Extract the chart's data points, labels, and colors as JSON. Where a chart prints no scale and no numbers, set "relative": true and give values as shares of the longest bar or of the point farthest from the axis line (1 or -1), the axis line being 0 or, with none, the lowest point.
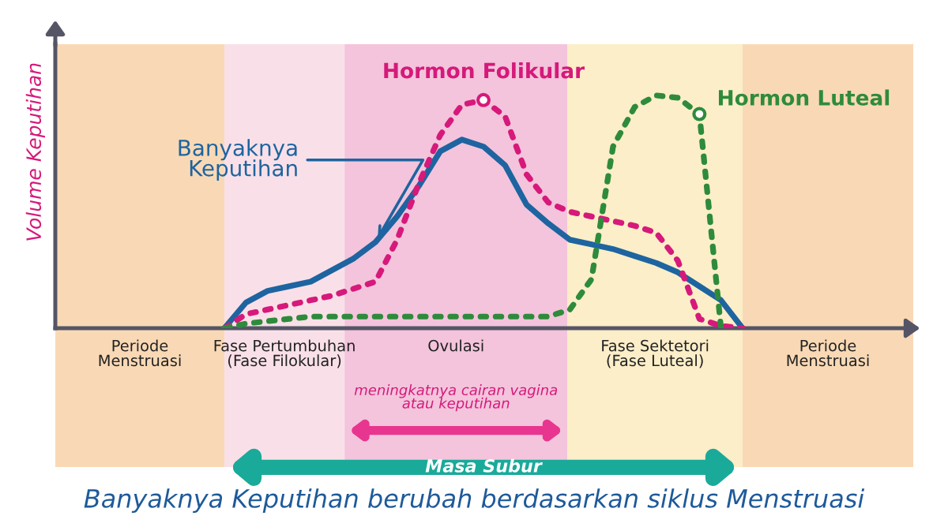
{
  "chart_data": {
    "type": "line",
    "relative": true,
    "title": "Banyaknya Keputihan berubah berdasarkan siklus Menstruasi",
    "categories": [
      null,
      null,
      null,
      null,
      null,
      null,
      null,
      null,
      null,
      null,
      null,
      null,
      null,
      null,
      null,
      null,
      null,
      null,
      null,
      null,
      null,
      null,
      null,
      null,
      null
    ],
    "series": [
      {
        "color": "#1e64a0",
        "line_style": "solid",
        "values": [
          0,
          0.11,
          0.16,
          0.18,
          0.2,
          0.25,
          0.3,
          0.37,
          0.48,
          0.61,
          0.76,
          0.81,
          0.78,
          0.7,
          0.53,
          0.45,
          0.38,
          0.36,
          0.34,
          0.31,
          0.28,
          0.24,
          0.18,
          0.12,
          0
        ]
      },
      {
        "color": "#d6197a",
        "line_style": "dotted",
        "values": [
          0,
          0.06,
          0.08,
          0.1,
          0.12,
          0.14,
          0.17,
          0.2,
          0.38,
          0.62,
          0.83,
          0.96,
          0.98,
          0.91,
          0.66,
          0.54,
          0.5,
          0.48,
          0.46,
          0.44,
          0.41,
          0.29,
          0.04,
          0.01,
          0
        ]
      },
      {
        "color": "#2e8b3c",
        "line_style": "dotted",
        "values": [
          0,
          0.02,
          0.03,
          0.04,
          0.05,
          0.05,
          0.05,
          0.05,
          0.05,
          0.05,
          0.05,
          0.05,
          0.05,
          0.05,
          0.05,
          0.05,
          0.08,
          0.21,
          0.78,
          0.95,
          1,
          0.99,
          0.92,
          0,
          null
        ]
      }
    ],
    "annotations": [
      "Banyaknya\nKeputihan",
      {
        "text": "Hormon Folikular",
        "y": 0.98
      },
      "Hormon Luteal",
      "Periode\nMenstruasi",
      "Fase Pertumbuhan\n(Fase Filokular)",
      "Ovulasi",
      "Fase Sektetori\n(Fase Luteal)",
      "Periode\nMenstruasi",
      "meningkatnya cairan vagina\natau keputihan",
      "Masa Subur",
      "Volume Keputihan"
    ]
  }
}
